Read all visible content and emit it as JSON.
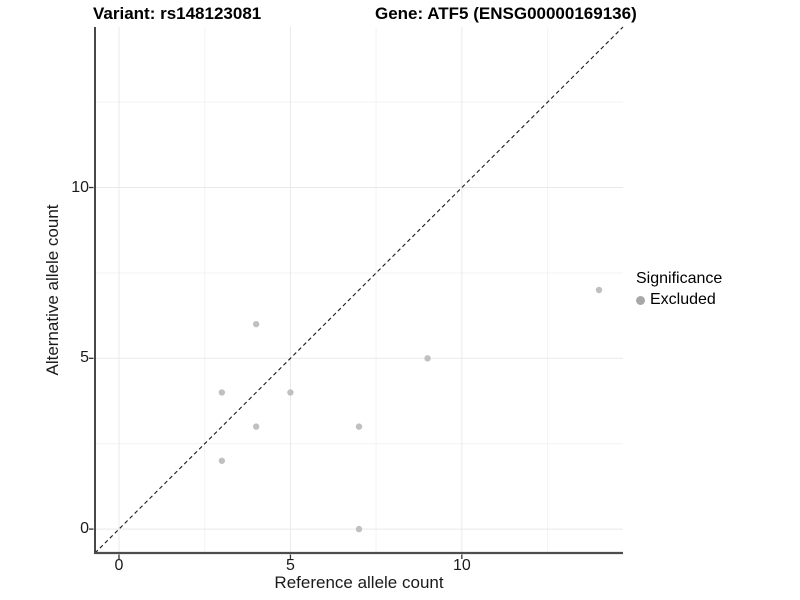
{
  "chart_data": {
    "type": "scatter",
    "title_left": "Variant: rs148123081",
    "title_right": "Gene: ATF5 (ENSG00000169136)",
    "xlabel": "Reference allele count",
    "ylabel": "Alternative allele count",
    "points": [
      {
        "x": 3,
        "y": 2
      },
      {
        "x": 3,
        "y": 4
      },
      {
        "x": 4,
        "y": 3
      },
      {
        "x": 4,
        "y": 6
      },
      {
        "x": 5,
        "y": 4
      },
      {
        "x": 7,
        "y": 0
      },
      {
        "x": 7,
        "y": 3
      },
      {
        "x": 9,
        "y": 5
      },
      {
        "x": 14,
        "y": 7
      }
    ],
    "xlim": [
      -0.7,
      14.7
    ],
    "ylim": [
      -0.7,
      14.7
    ],
    "x_ticks": [
      {
        "value": 0,
        "label": "0"
      },
      {
        "value": 5,
        "label": "5"
      },
      {
        "value": 10,
        "label": "10"
      }
    ],
    "y_ticks": [
      {
        "value": 0,
        "label": "0"
      },
      {
        "value": 5,
        "label": "5"
      },
      {
        "value": 10,
        "label": "10"
      }
    ],
    "minor_gridlines": [
      2.5,
      7.5,
      12.5
    ],
    "grid": true,
    "identity_line": {
      "style": "dashed",
      "from": [
        -0.7,
        -0.7
      ],
      "to": [
        14.7,
        14.7
      ]
    },
    "legend": {
      "title": "Significance",
      "position": "right",
      "entries": [
        {
          "label": "Excluded",
          "color": "#a8a8a8"
        }
      ]
    },
    "colors": {
      "point": "#c0c0c0",
      "major_grid": "#e9e9e9",
      "minor_grid": "#f3f3f3",
      "axis_line_y": "#1a1a1a",
      "axis_line_x": "#4d4d4d",
      "tick_mark": "#333333",
      "identity_line": "#1a1a1a"
    }
  }
}
